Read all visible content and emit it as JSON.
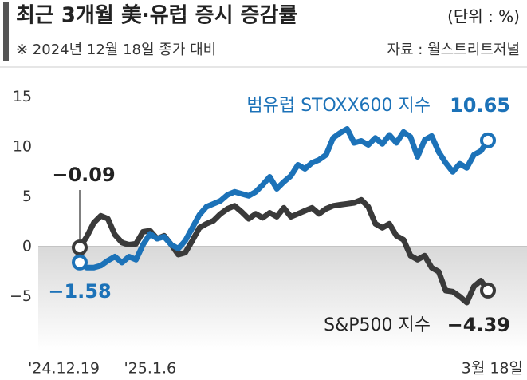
{
  "chart_data": {
    "type": "line",
    "title": "최근 3개월 美·유럽 증시 증감률",
    "unit": "(단위 : %)",
    "subtitle": "※ 2024년 12월 18일 종가 대비",
    "source": "자료 : 월스트리트저널",
    "categories": [
      "'24.12.19",
      null,
      null,
      null,
      null,
      null,
      null,
      null,
      null,
      null,
      "'25.1.6",
      null,
      null,
      null,
      null,
      null,
      null,
      null,
      null,
      null,
      null,
      null,
      null,
      null,
      null,
      null,
      null,
      null,
      null,
      null,
      null,
      null,
      null,
      null,
      null,
      null,
      null,
      null,
      null,
      null,
      null,
      null,
      null,
      null,
      null,
      null,
      null,
      null,
      null,
      null,
      null,
      null,
      null,
      null,
      null,
      null,
      null,
      null,
      "3월 18일"
    ],
    "series": [
      {
        "name": "S&P500 지수",
        "color": "#3a3a3a",
        "values": [
          -0.09,
          1.0,
          2.4,
          3.1,
          2.8,
          1.2,
          0.4,
          0.2,
          0.3,
          1.5,
          1.6,
          0.8,
          1.1,
          0.2,
          -0.8,
          -0.6,
          0.6,
          1.9,
          2.3,
          2.6,
          3.3,
          3.8,
          4.1,
          3.5,
          2.8,
          3.3,
          2.9,
          3.4,
          3.0,
          3.9,
          3.0,
          3.3,
          3.6,
          3.9,
          3.3,
          3.8,
          4.1,
          4.2,
          4.3,
          4.4,
          4.7,
          4.0,
          2.3,
          1.9,
          2.3,
          1.1,
          0.7,
          -0.9,
          -1.3,
          -0.9,
          -2.1,
          -2.5,
          -4.4,
          -4.5,
          -5.0,
          -5.6,
          -4.0,
          -3.4,
          -4.39
        ],
        "value_labels": [
          "−0.09",
          null,
          null,
          null,
          null,
          null,
          null,
          null,
          null,
          null,
          null,
          null,
          null,
          null,
          null,
          null,
          null,
          null,
          null,
          null,
          null,
          null,
          null,
          null,
          null,
          null,
          null,
          null,
          null,
          null,
          null,
          null,
          null,
          null,
          null,
          null,
          null,
          null,
          null,
          null,
          null,
          null,
          null,
          null,
          null,
          null,
          null,
          null,
          null,
          null,
          null,
          null,
          null,
          null,
          null,
          null,
          null,
          null,
          "−4.39"
        ]
      },
      {
        "name": "범유럽 STOXX600 지수",
        "color": "#1c72b8",
        "values": [
          -1.58,
          -2.1,
          -2.1,
          -1.9,
          -1.4,
          -1.0,
          -1.6,
          -1.0,
          -1.3,
          0.2,
          1.3,
          0.8,
          1.0,
          0.2,
          -0.2,
          0.6,
          1.9,
          3.2,
          4.0,
          4.3,
          4.6,
          5.2,
          5.5,
          5.3,
          5.1,
          5.5,
          6.2,
          7.0,
          5.8,
          6.5,
          7.1,
          8.2,
          7.8,
          8.4,
          8.7,
          9.2,
          10.9,
          11.4,
          11.8,
          10.4,
          10.6,
          10.2,
          10.9,
          10.3,
          11.2,
          10.4,
          11.5,
          11.0,
          9.0,
          10.7,
          11.1,
          9.5,
          8.4,
          7.5,
          8.3,
          7.9,
          9.2,
          9.6,
          10.65
        ],
        "value_labels": [
          "−1.58",
          null,
          null,
          null,
          null,
          null,
          null,
          null,
          null,
          null,
          null,
          null,
          null,
          null,
          null,
          null,
          null,
          null,
          null,
          null,
          null,
          null,
          null,
          null,
          null,
          null,
          null,
          null,
          null,
          null,
          null,
          null,
          null,
          null,
          null,
          null,
          null,
          null,
          null,
          null,
          null,
          null,
          null,
          null,
          null,
          null,
          null,
          null,
          null,
          null,
          null,
          null,
          null,
          null,
          null,
          null,
          null,
          null,
          "10.65"
        ]
      }
    ],
    "ylim": [
      -10.5,
      17
    ],
    "yticks": [
      15,
      10,
      5,
      0,
      {
        "value": -5,
        "label": "−5"
      }
    ],
    "grid": false
  }
}
